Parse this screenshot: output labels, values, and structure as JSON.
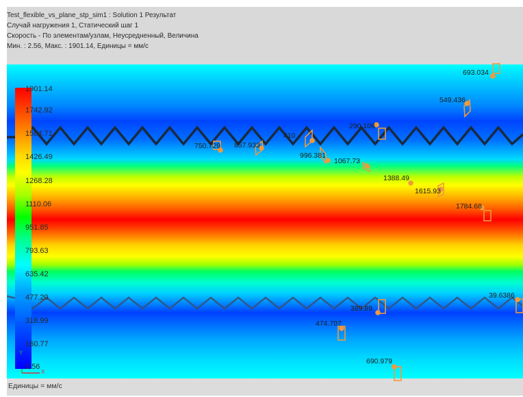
{
  "header": {
    "line1": "Test_flexible_vs_plane_stp_sim1 : Solution 1 Результат",
    "line2": "Случай нагружения 1, Статический шаг 1",
    "line3": "Скорость - По элементам/узлам, Неусредненный, Величина",
    "line4": "Мин. : 2.56, Макс. : 1901.14, Единицы = мм/с"
  },
  "legend": {
    "labels": [
      "1901.14",
      "1742.92",
      "1584.71",
      "1426.49",
      "1268.28",
      "1110.06",
      "951.85",
      "793.63",
      "635.42",
      "477.20",
      "318.99",
      "160.77",
      "2.56"
    ],
    "units": "Единицы = мм/с"
  },
  "markers": [
    {
      "label": "693.034"
    },
    {
      "label": "549.436"
    },
    {
      "label": "290.106"
    },
    {
      "label": "410"
    },
    {
      "label": "750.729"
    },
    {
      "label": "857.933"
    },
    {
      "label": "996.381"
    },
    {
      "label": "1067.73"
    },
    {
      "label": "1388.49"
    },
    {
      "label": "1615.93"
    },
    {
      "label": "1784.68"
    },
    {
      "label": "39.6386"
    },
    {
      "label": "389.89"
    },
    {
      "label": "474.707"
    },
    {
      "label": "690.979"
    }
  ],
  "axis_triad": {
    "y": "Y",
    "x": "X"
  },
  "colors": {
    "max": "#ff0000",
    "min": "#0000ff",
    "marker": "#f09a3c",
    "boundary": "#1a2a40"
  }
}
